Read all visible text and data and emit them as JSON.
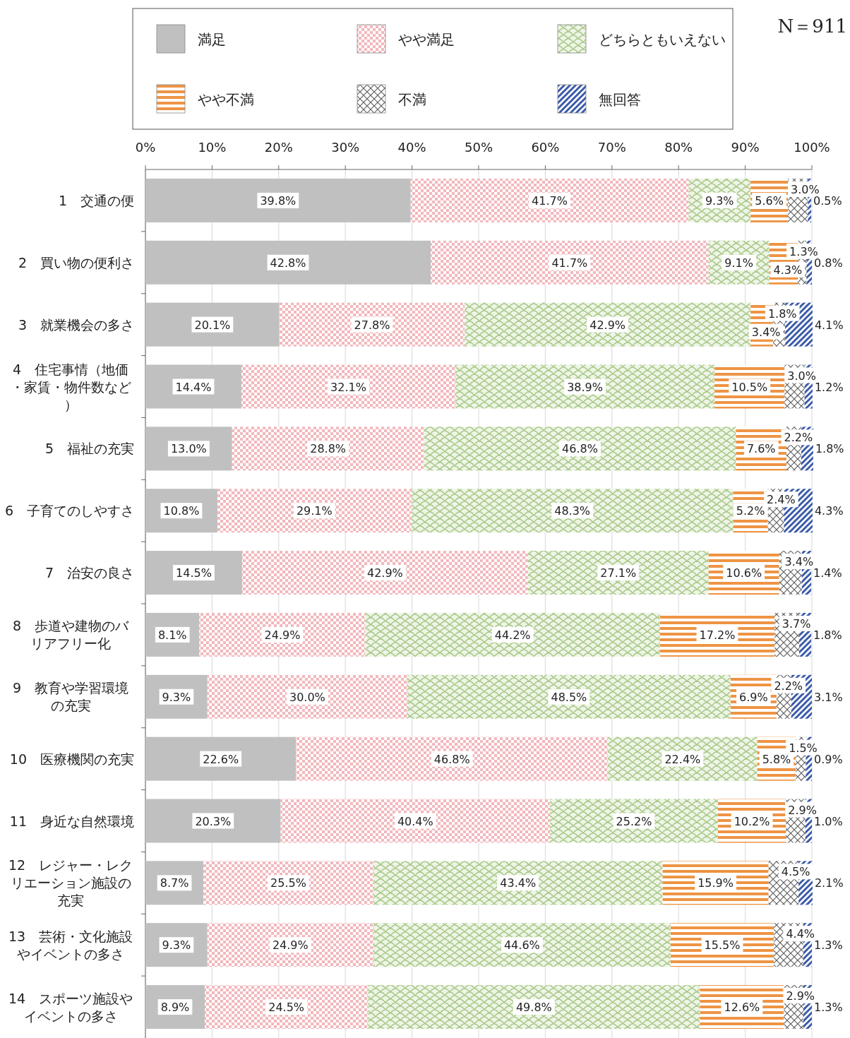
{
  "chart_data": {
    "type": "bar",
    "orientation": "horizontal",
    "stacked": true,
    "legend": "top",
    "grid": "x",
    "categories": [
      "1　交通の便",
      "2　買い物の便利さ",
      "3　就業機会の多さ",
      "4　住宅事情（地価・家賃・物件数など）",
      "5　福祉の充実",
      "6　子育てのしやすさ",
      "7　治安の良さ",
      "8　歩道や建物のバリアフリー化",
      "9　教育や学習環境の充実",
      "10　医療機関の充実",
      "11　身近な自然環境",
      "12　レジャー・レクリエーション施設の充実",
      "13　芸術・文化施設やイベントの多さ",
      "14　スポーツ施設やイベントの多さ"
    ],
    "xlim": [
      0,
      100
    ],
    "xticks": [
      {
        "value": 0,
        "label": "0%"
      },
      {
        "value": 10,
        "label": "10%"
      },
      {
        "value": 20,
        "label": "20%"
      },
      {
        "value": 30,
        "label": "30%"
      },
      {
        "value": 40,
        "label": "40%"
      },
      {
        "value": 50,
        "label": "50%"
      },
      {
        "value": 60,
        "label": "60%"
      },
      {
        "value": 70,
        "label": "70%"
      },
      {
        "value": 80,
        "label": "80%"
      },
      {
        "value": 90,
        "label": "90%"
      },
      {
        "value": 100,
        "label": "100%"
      }
    ],
    "series": [
      {
        "name": "満足",
        "color": "#c0c0c0",
        "values": [
          39.8,
          42.8,
          20.1,
          14.4,
          13.0,
          10.8,
          14.5,
          8.1,
          9.3,
          22.6,
          20.3,
          8.7,
          9.3,
          8.9
        ],
        "value_labels": [
          "39.8%",
          "42.8%",
          "20.1%",
          "14.4%",
          "13.0%",
          "10.8%",
          "14.5%",
          "8.1%",
          "9.3%",
          "22.6%",
          "20.3%",
          "8.7%",
          "9.3%",
          "8.9%"
        ]
      },
      {
        "name": "やや満足",
        "color": "#f2b8bc",
        "values": [
          41.7,
          41.7,
          27.8,
          32.1,
          28.8,
          29.1,
          42.9,
          24.9,
          30.0,
          46.8,
          40.4,
          25.5,
          24.9,
          24.5
        ],
        "value_labels": [
          "41.7%",
          "41.7%",
          "27.8%",
          "32.1%",
          "28.8%",
          "29.1%",
          "42.9%",
          "24.9%",
          "30.0%",
          "46.8%",
          "40.4%",
          "25.5%",
          "24.9%",
          "24.5%"
        ]
      },
      {
        "name": "どちらともいえない",
        "color": "#a8c888",
        "values": [
          9.3,
          9.1,
          42.9,
          38.9,
          46.8,
          48.3,
          27.1,
          44.2,
          48.5,
          22.4,
          25.2,
          43.4,
          44.6,
          49.8
        ],
        "value_labels": [
          "9.3%",
          "9.1%",
          "42.9%",
          "38.9%",
          "46.8%",
          "48.3%",
          "27.1%",
          "44.2%",
          "48.5%",
          "22.4%",
          "25.2%",
          "43.4%",
          "44.6%",
          "49.8%"
        ]
      },
      {
        "name": "やや不満",
        "color": "#ee9444",
        "values": [
          5.6,
          4.3,
          3.4,
          10.5,
          7.6,
          5.2,
          10.6,
          17.2,
          6.9,
          5.8,
          10.2,
          15.9,
          15.5,
          12.6
        ],
        "value_labels": [
          "5.6%",
          "4.3%",
          "3.4%",
          "10.5%",
          "7.6%",
          "5.2%",
          "10.6%",
          "17.2%",
          "6.9%",
          "5.8%",
          "10.2%",
          "15.9%",
          "15.5%",
          "12.6%"
        ]
      },
      {
        "name": "不満",
        "color": "#606060",
        "values": [
          3.0,
          1.3,
          1.8,
          3.0,
          2.2,
          2.4,
          3.4,
          3.7,
          2.2,
          1.5,
          2.9,
          4.5,
          4.4,
          2.9
        ],
        "value_labels": [
          "3.0%",
          "1.3%",
          "1.8%",
          "3.0%",
          "2.2%",
          "2.4%",
          "3.4%",
          "3.7%",
          "2.2%",
          "1.5%",
          "2.9%",
          "4.5%",
          "4.4%",
          "2.9%"
        ]
      },
      {
        "name": "無回答",
        "color": "#3a5aa8",
        "values": [
          0.5,
          0.8,
          4.1,
          1.2,
          1.8,
          4.3,
          1.4,
          1.8,
          3.1,
          0.9,
          1.0,
          2.1,
          1.3,
          1.3
        ],
        "value_labels": [
          "0.5%",
          "0.8%",
          "4.1%",
          "1.2%",
          "1.8%",
          "4.3%",
          "1.4%",
          "1.8%",
          "3.1%",
          "0.9%",
          "1.0%",
          "2.1%",
          "1.3%",
          "1.3%"
        ]
      }
    ],
    "annotations": [
      "N＝911"
    ]
  }
}
